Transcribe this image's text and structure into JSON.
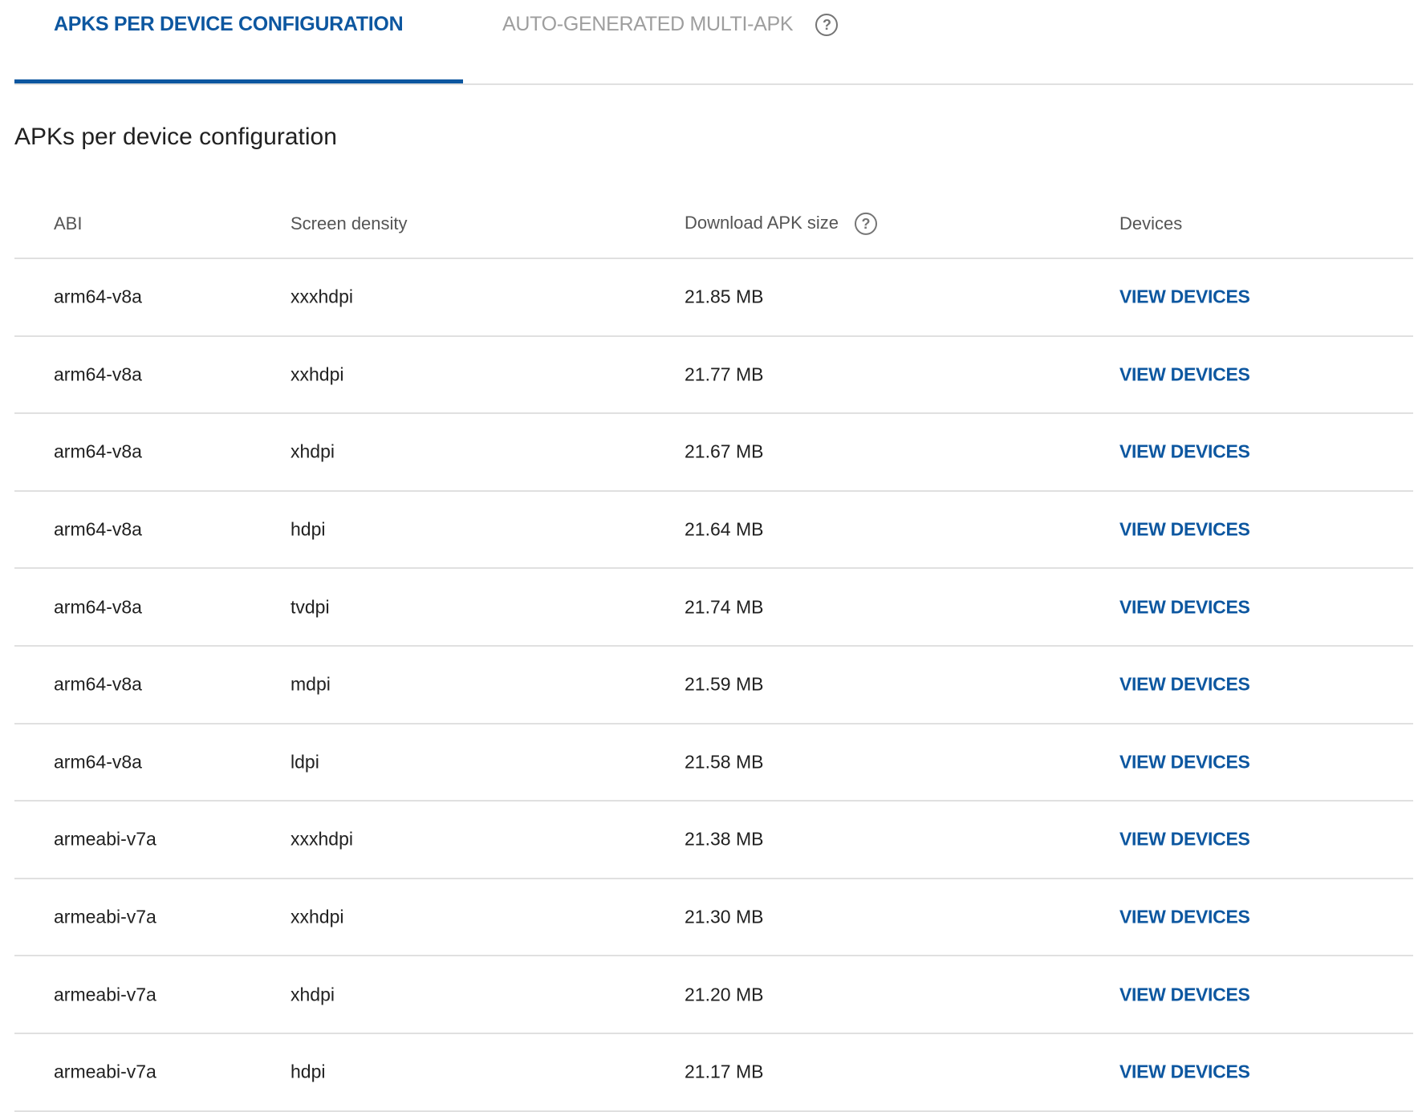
{
  "tabs": [
    {
      "label": "APKS PER DEVICE CONFIGURATION",
      "active": true
    },
    {
      "label": "AUTO-GENERATED MULTI-APK",
      "active": false,
      "icon": "help-icon"
    }
  ],
  "heading": "APKs per device configuration",
  "columns": {
    "abi": "ABI",
    "density": "Screen density",
    "size": "Download APK size",
    "devices": "Devices"
  },
  "rows": [
    {
      "abi": "arm64-v8a",
      "density": "xxxhdpi",
      "size": "21.85 MB",
      "action": "VIEW DEVICES"
    },
    {
      "abi": "arm64-v8a",
      "density": "xxhdpi",
      "size": "21.77 MB",
      "action": "VIEW DEVICES"
    },
    {
      "abi": "arm64-v8a",
      "density": "xhdpi",
      "size": "21.67 MB",
      "action": "VIEW DEVICES"
    },
    {
      "abi": "arm64-v8a",
      "density": "hdpi",
      "size": "21.64 MB",
      "action": "VIEW DEVICES"
    },
    {
      "abi": "arm64-v8a",
      "density": "tvdpi",
      "size": "21.74 MB",
      "action": "VIEW DEVICES"
    },
    {
      "abi": "arm64-v8a",
      "density": "mdpi",
      "size": "21.59 MB",
      "action": "VIEW DEVICES"
    },
    {
      "abi": "arm64-v8a",
      "density": "ldpi",
      "size": "21.58 MB",
      "action": "VIEW DEVICES"
    },
    {
      "abi": "armeabi-v7a",
      "density": "xxxhdpi",
      "size": "21.38 MB",
      "action": "VIEW DEVICES"
    },
    {
      "abi": "armeabi-v7a",
      "density": "xxhdpi",
      "size": "21.30 MB",
      "action": "VIEW DEVICES"
    },
    {
      "abi": "armeabi-v7a",
      "density": "xhdpi",
      "size": "21.20 MB",
      "action": "VIEW DEVICES"
    },
    {
      "abi": "armeabi-v7a",
      "density": "hdpi",
      "size": "21.17 MB",
      "action": "VIEW DEVICES"
    }
  ],
  "colors": {
    "accent": "#0d57a0",
    "inactive_tab": "#9e9e9e",
    "divider": "#e0e0e0"
  }
}
